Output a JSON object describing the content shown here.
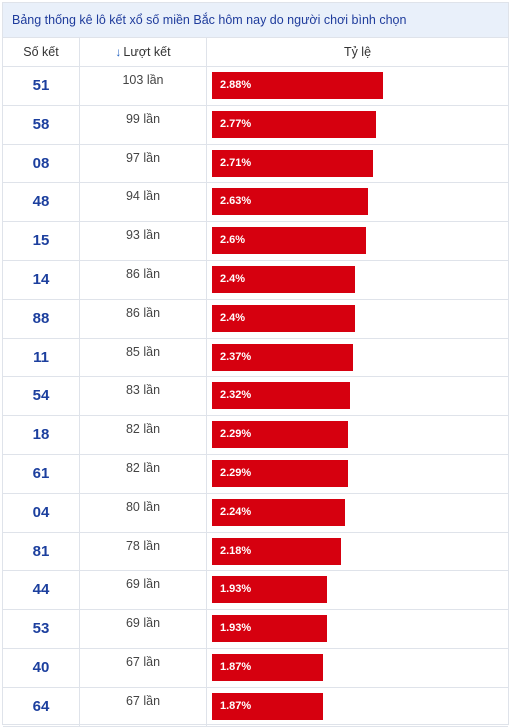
{
  "caption": "Bảng thống kê lô kết xổ số miền Bắc hôm nay do người chơi bình chọn",
  "headers": {
    "number": "Số kết",
    "count": "Lượt kết",
    "rate": "Tỷ lệ",
    "sort_icon": "arrow-down-icon"
  },
  "colors": {
    "bar": "#d6000f",
    "number": "#1c3f9e",
    "caption_bg": "#e9f0fa"
  },
  "chart_data": {
    "type": "bar",
    "orientation": "horizontal",
    "title": "Bảng thống kê lô kết xổ số miền Bắc hôm nay do người chơi bình chọn",
    "categories": [
      "51",
      "58",
      "08",
      "48",
      "15",
      "14",
      "88",
      "11",
      "54",
      "18",
      "61",
      "04",
      "81",
      "44",
      "53",
      "40",
      "64"
    ],
    "counts": [
      "103 lần",
      "99 lần",
      "97 lần",
      "94 lần",
      "93 lần",
      "86 lần",
      "86 lần",
      "85 lần",
      "83 lần",
      "82 lần",
      "82 lần",
      "80 lần",
      "78 lần",
      "69 lần",
      "69 lần",
      "67 lần",
      "67 lần"
    ],
    "labels": [
      "2.88%",
      "2.77%",
      "2.71%",
      "2.63%",
      "2.6%",
      "2.4%",
      "2.4%",
      "2.37%",
      "2.32%",
      "2.29%",
      "2.29%",
      "2.24%",
      "2.18%",
      "1.93%",
      "1.93%",
      "1.87%",
      "1.87%"
    ],
    "values": [
      2.88,
      2.77,
      2.71,
      2.63,
      2.6,
      2.4,
      2.4,
      2.37,
      2.32,
      2.29,
      2.29,
      2.24,
      2.18,
      1.93,
      1.93,
      1.87,
      1.87
    ],
    "xlim": [
      0,
      2.88
    ]
  }
}
